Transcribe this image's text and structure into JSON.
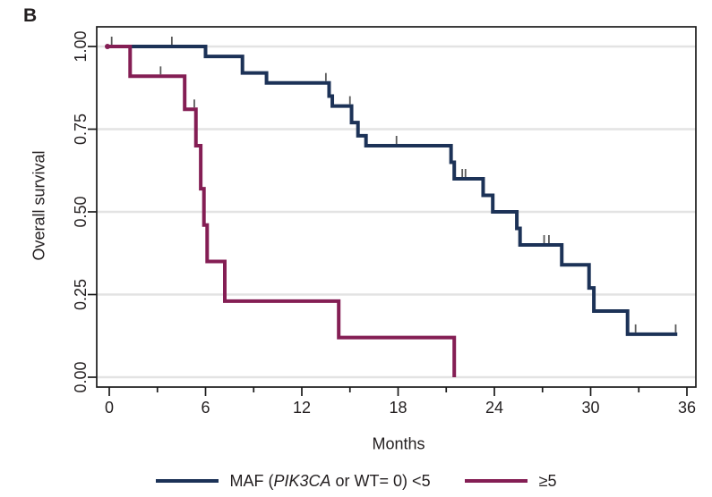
{
  "panel_label": "B",
  "colors": {
    "navy": "#1c3257",
    "maroon": "#841e54",
    "grid": "#e3e3e3",
    "axis": "#1a1a1a",
    "text": "#231f20",
    "censor": "#5a5a5a"
  },
  "y_axis": {
    "title": "Overall survival",
    "tick_labels": [
      "1.00",
      "0.75",
      "0.50",
      "0.25",
      "0.00"
    ],
    "tick_values": [
      1.0,
      0.75,
      0.5,
      0.25,
      0.0
    ]
  },
  "x_axis": {
    "title": "Months",
    "tick_labels": [
      "0",
      "6",
      "12",
      "18",
      "24",
      "30",
      "36"
    ],
    "tick_values": [
      0,
      6,
      12,
      18,
      24,
      30,
      36
    ],
    "minor_tick_values": [
      3,
      9,
      15,
      21,
      27,
      33
    ]
  },
  "legend": {
    "items": [
      {
        "label_prefix": "MAF (",
        "label_italic": "PIK3CA",
        "label_suffix": " or WT= 0) <5",
        "color_key": "navy"
      },
      {
        "label": "≥5",
        "color_key": "maroon"
      }
    ]
  },
  "chart_data": {
    "type": "line",
    "subtype": "kaplan-meier-step",
    "title": "",
    "xlabel": "Months",
    "ylabel": "Overall survival",
    "xlim": [
      0,
      36
    ],
    "ylim": [
      0,
      1
    ],
    "grid": "horizontal",
    "legend_position": "bottom",
    "series": [
      {
        "name": "MAF (PIK3CA or WT= 0) <5",
        "color_key": "navy",
        "steps": [
          [
            0,
            1.0
          ],
          [
            6.0,
            0.97
          ],
          [
            8.3,
            0.92
          ],
          [
            9.8,
            0.89
          ],
          [
            13.7,
            0.85
          ],
          [
            13.9,
            0.82
          ],
          [
            15.1,
            0.77
          ],
          [
            15.5,
            0.73
          ],
          [
            16.0,
            0.7
          ],
          [
            21.3,
            0.65
          ],
          [
            21.5,
            0.6
          ],
          [
            23.3,
            0.55
          ],
          [
            23.9,
            0.5
          ],
          [
            25.4,
            0.45
          ],
          [
            25.6,
            0.4
          ],
          [
            28.2,
            0.34
          ],
          [
            29.9,
            0.27
          ],
          [
            30.2,
            0.2
          ],
          [
            32.3,
            0.13
          ]
        ],
        "end_time": 35.4,
        "censor_marks": [
          [
            0.15,
            1.0
          ],
          [
            3.9,
            1.0
          ],
          [
            13.5,
            0.89
          ],
          [
            15.0,
            0.82
          ],
          [
            17.9,
            0.7
          ],
          [
            22.0,
            0.6
          ],
          [
            22.2,
            0.6
          ],
          [
            27.1,
            0.4
          ],
          [
            27.4,
            0.4
          ],
          [
            32.8,
            0.13
          ],
          [
            35.3,
            0.13
          ]
        ]
      },
      {
        "name": "≥5",
        "color_key": "maroon",
        "steps": [
          [
            0,
            1.0
          ],
          [
            1.3,
            0.91
          ],
          [
            4.7,
            0.81
          ],
          [
            5.4,
            0.7
          ],
          [
            5.7,
            0.57
          ],
          [
            5.9,
            0.46
          ],
          [
            6.1,
            0.35
          ],
          [
            7.2,
            0.23
          ],
          [
            14.3,
            0.12
          ],
          [
            21.5,
            0.0
          ]
        ],
        "end_time": 21.5,
        "censor_marks": [
          [
            3.2,
            0.91
          ],
          [
            5.3,
            0.81
          ]
        ]
      }
    ]
  }
}
